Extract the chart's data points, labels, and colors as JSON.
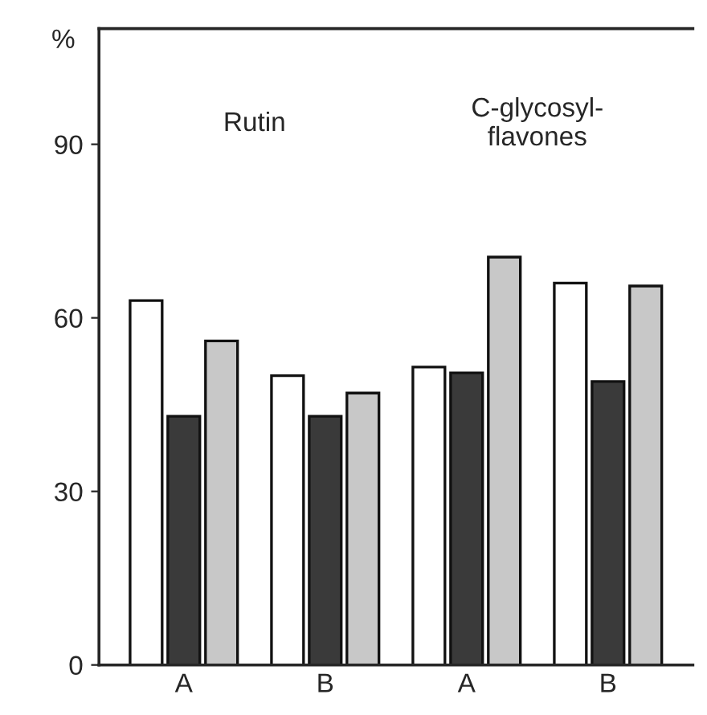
{
  "chart_data": {
    "type": "bar",
    "ylabel": "%",
    "categories": [
      "A",
      "B",
      "A",
      "B"
    ],
    "series": [
      {
        "color": "#ffffff",
        "values": [
          63,
          50,
          51.5,
          66
        ]
      },
      {
        "color": "#3a3a3a",
        "values": [
          43,
          43,
          50.5,
          49
        ]
      },
      {
        "color": "#c8c8c8",
        "values": [
          56,
          47,
          70.5,
          65.5
        ]
      }
    ],
    "ylim": [
      0,
      110
    ],
    "yticks": [
      0,
      30,
      60,
      90
    ],
    "annotations": [
      "Rutin",
      "C-glycosyl-\nflavones"
    ],
    "grid": false,
    "legend": false
  }
}
